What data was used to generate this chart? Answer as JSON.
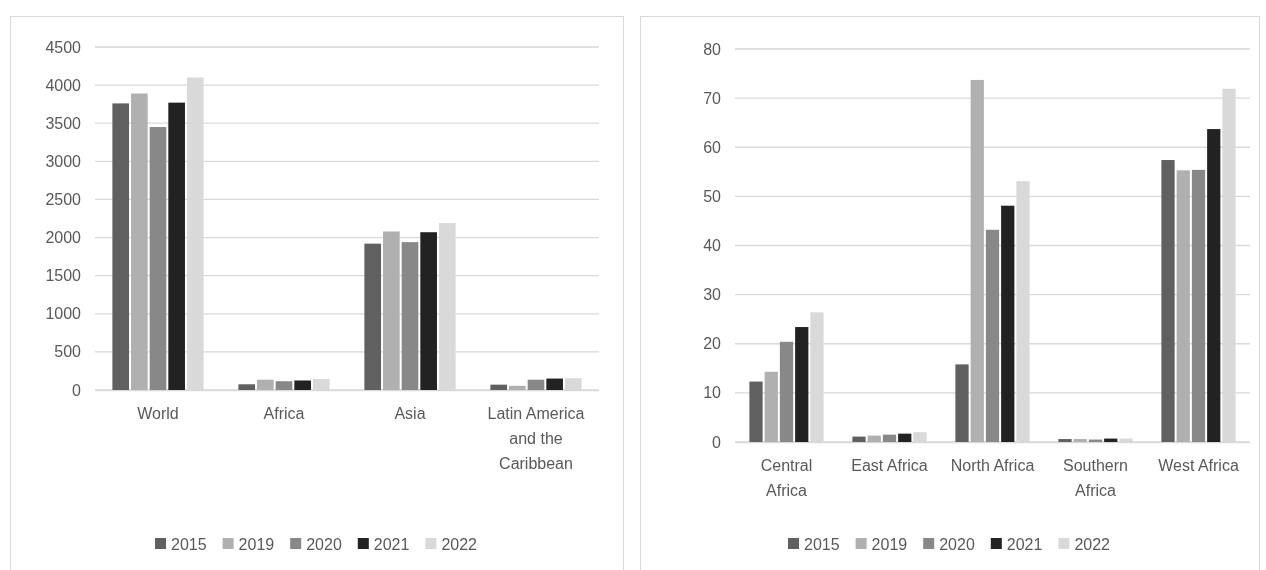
{
  "chart_data": [
    {
      "type": "bar",
      "categories": [
        "World",
        "Africa",
        "Asia",
        "Latin America and the Caribbean"
      ],
      "series": [
        {
          "name": "2015",
          "color": "#606060",
          "values": [
            3760,
            75,
            1920,
            70
          ]
        },
        {
          "name": "2019",
          "color": "#b0b0b0",
          "values": [
            3890,
            135,
            2080,
            55
          ]
        },
        {
          "name": "2020",
          "color": "#888888",
          "values": [
            3450,
            115,
            1940,
            135
          ]
        },
        {
          "name": "2021",
          "color": "#222222",
          "values": [
            3770,
            125,
            2070,
            150
          ]
        },
        {
          "name": "2022",
          "color": "#d9d9d9",
          "values": [
            4100,
            145,
            2190,
            155
          ]
        }
      ],
      "ylim": [
        0,
        4500
      ],
      "yticks": [
        0,
        500,
        1000,
        1500,
        2000,
        2500,
        3000,
        3500,
        4000,
        4500
      ],
      "grid": "y",
      "legend": "bottom"
    },
    {
      "type": "bar",
      "categories": [
        "Central Africa",
        "East Africa",
        "North Africa",
        "Southern Africa",
        "West Africa"
      ],
      "series": [
        {
          "name": "2015",
          "color": "#606060",
          "values": [
            12.3,
            1.1,
            15.8,
            0.6,
            57.4
          ]
        },
        {
          "name": "2019",
          "color": "#b0b0b0",
          "values": [
            14.3,
            1.3,
            73.7,
            0.6,
            55.3
          ]
        },
        {
          "name": "2020",
          "color": "#888888",
          "values": [
            20.4,
            1.5,
            43.2,
            0.5,
            55.4
          ]
        },
        {
          "name": "2021",
          "color": "#222222",
          "values": [
            23.4,
            1.7,
            48.1,
            0.7,
            63.7
          ]
        },
        {
          "name": "2022",
          "color": "#d9d9d9",
          "values": [
            26.4,
            2.0,
            53.1,
            0.7,
            71.9
          ]
        }
      ],
      "ylim": [
        0,
        80
      ],
      "yticks": [
        0,
        10,
        20,
        30,
        40,
        50,
        60,
        70,
        80
      ],
      "grid": "y",
      "legend": "bottom"
    }
  ]
}
